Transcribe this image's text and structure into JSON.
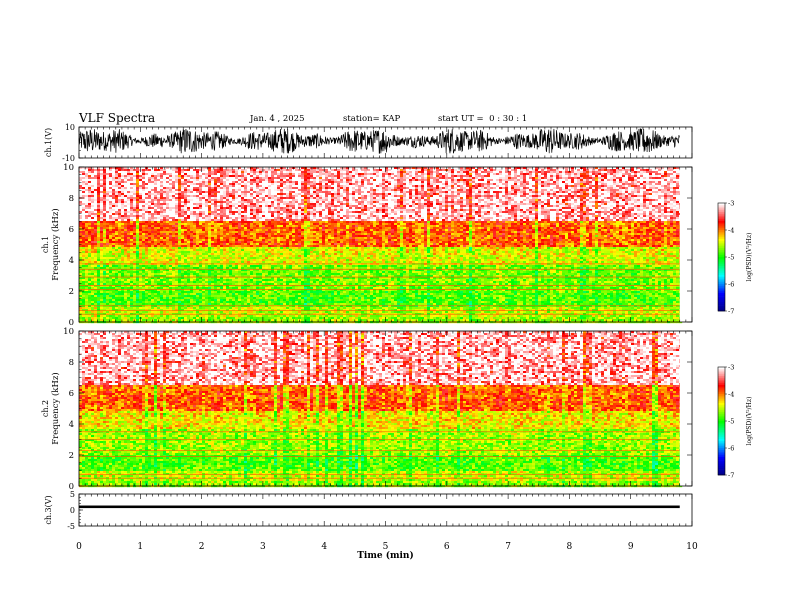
{
  "header": {
    "title": "VLF Spectra",
    "date": "Jan. 4 , 2025",
    "station": "station= KAP",
    "start": "start UT =  0 : 30 : 1"
  },
  "chart_data": [
    {
      "type": "line",
      "panel": "ch1-waveform",
      "ylabel": "ch.1(V)",
      "ylim": [
        -10,
        10
      ],
      "ytick_labels": [
        "-10",
        "10"
      ],
      "xlim": [
        0,
        10
      ],
      "description_level": "dense waveform oscillating roughly between -6 and 8 V",
      "color": "#000000"
    },
    {
      "type": "heatmap",
      "panel": "ch1-spectrogram",
      "ylabel": "ch.1 Frequency (kHz)",
      "ylim": [
        0,
        10
      ],
      "yticks": [
        0,
        2,
        4,
        6,
        8,
        10
      ],
      "xlim": [
        0,
        10
      ],
      "data_end_min": 9.8,
      "bands": [
        {
          "from_khz": 0.0,
          "to_khz": 0.3,
          "level": -4.6
        },
        {
          "from_khz": 0.3,
          "to_khz": 1.0,
          "level": -4.5
        },
        {
          "from_khz": 1.0,
          "to_khz": 2.0,
          "level": -4.8
        },
        {
          "from_khz": 2.0,
          "to_khz": 3.7,
          "level": -4.7
        },
        {
          "from_khz": 3.7,
          "to_khz": 4.8,
          "level": -4.4
        },
        {
          "from_khz": 4.8,
          "to_khz": 6.5,
          "level": -3.9
        },
        {
          "from_khz": 6.5,
          "to_khz": 10.0,
          "level": -3.5
        }
      ],
      "lines_khz": [
        0.5,
        0.75,
        1.05,
        2.1,
        2.35,
        2.9,
        3.4,
        3.75
      ]
    },
    {
      "type": "heatmap",
      "panel": "ch2-spectrogram",
      "ylabel": "ch.2 Frequency (kHz)",
      "ylim": [
        0,
        10
      ],
      "yticks": [
        0,
        2,
        4,
        6,
        8,
        10
      ],
      "xlim": [
        0,
        10
      ],
      "data_end_min": 9.8,
      "bands": [
        {
          "from_khz": 0.0,
          "to_khz": 0.3,
          "level": -4.6
        },
        {
          "from_khz": 0.3,
          "to_khz": 1.0,
          "level": -4.5
        },
        {
          "from_khz": 1.0,
          "to_khz": 2.0,
          "level": -4.8
        },
        {
          "from_khz": 2.0,
          "to_khz": 3.7,
          "level": -4.6
        },
        {
          "from_khz": 3.7,
          "to_khz": 4.8,
          "level": -4.3
        },
        {
          "from_khz": 4.8,
          "to_khz": 6.5,
          "level": -3.9
        },
        {
          "from_khz": 6.5,
          "to_khz": 10.0,
          "level": -3.5
        }
      ],
      "lines_khz": [
        0.5,
        0.75,
        1.9,
        2.3,
        3.0,
        3.5
      ]
    },
    {
      "type": "line",
      "panel": "ch3-waveform",
      "ylabel": "ch.3(V)",
      "ylim": [
        -5,
        5
      ],
      "ytick_labels": [
        "-5",
        "0",
        "5"
      ],
      "xlim": [
        0,
        10
      ],
      "description_level": "near-constant signal around 1 V",
      "color": "#000000"
    }
  ],
  "time_axis": {
    "label": "Time (min)",
    "ticks": [
      "0",
      "1",
      "2",
      "3",
      "4",
      "5",
      "6",
      "7",
      "8",
      "9",
      "10"
    ]
  },
  "colorbars": [
    {
      "label": "log(PSD)(V²/Hz)",
      "ticks": [
        "-3",
        "-4",
        "-5",
        "-6",
        "-7"
      ]
    },
    {
      "label": "log(PSD)(V²/Hz)",
      "ticks": [
        "-3",
        "-4",
        "-5",
        "-6",
        "-7"
      ]
    }
  ],
  "colorbar_colors": [
    "#000080",
    "#0000ff",
    "#00ffff",
    "#00ff00",
    "#ffff00",
    "#ff0000",
    "#ffffff"
  ]
}
